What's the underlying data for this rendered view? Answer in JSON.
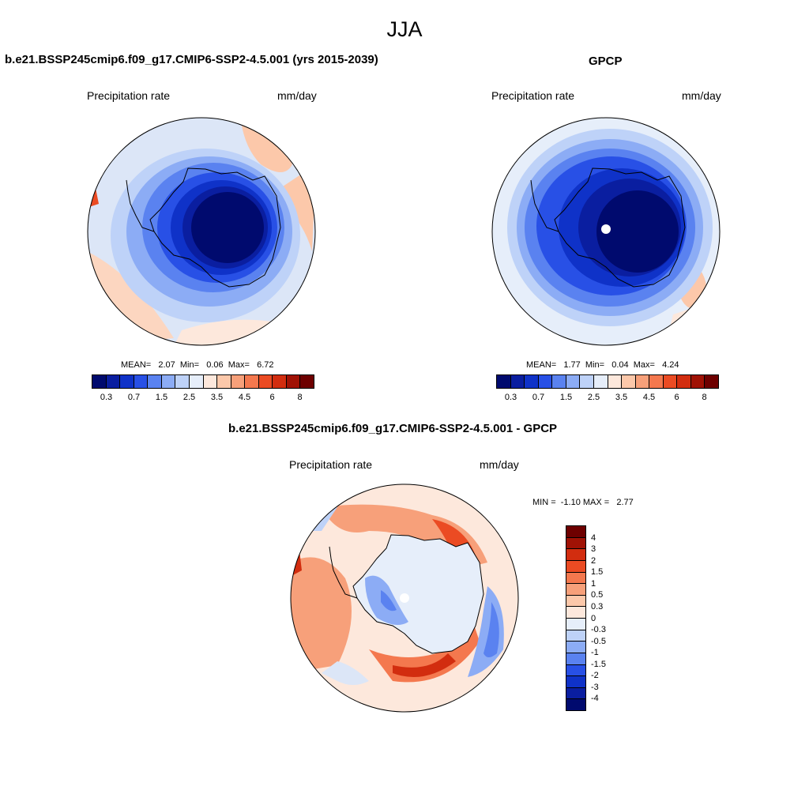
{
  "title": "JJA",
  "panels": {
    "model": {
      "title": "b.e21.BSSP245cmip6.f09_g17.CMIP6-SSP2-4.5.001 (yrs 2015-2039)",
      "variable": "Precipitation rate",
      "units": "mm/day",
      "stats": "MEAN=   2.07  Min=   0.06  Max=   6.72",
      "mean": 2.07,
      "min": 0.06,
      "max": 6.72
    },
    "obs": {
      "title": "GPCP",
      "variable": "Precipitation rate",
      "units": "mm/day",
      "stats": "MEAN=   1.77  Min=   0.04  Max=   4.24",
      "mean": 1.77,
      "min": 0.04,
      "max": 4.24
    },
    "diff": {
      "title": "b.e21.BSSP245cmip6.f09_g17.CMIP6-SSP2-4.5.001 - GPCP",
      "variable": "Precipitation rate",
      "units": "mm/day",
      "stats": "MIN =  -1.10 MAX =   2.77",
      "min": -1.1,
      "max": 2.77
    }
  },
  "colorbar_abs": {
    "labels": [
      "0.3",
      "0.7",
      "1.5",
      "2.5",
      "3.5",
      "4.5",
      "6",
      "8"
    ],
    "colors": [
      "#000a6e",
      "#0a1ea0",
      "#0f32c8",
      "#2850e6",
      "#5a82f0",
      "#8cacf5",
      "#bed2f8",
      "#e6eefa",
      "#fde8dc",
      "#fcc8aa",
      "#f7a07a",
      "#f4784e",
      "#eb4b23",
      "#d22d0f",
      "#a01205",
      "#6e0000"
    ]
  },
  "colorbar_diff": {
    "labels": [
      "4",
      "3",
      "2",
      "1.5",
      "1",
      "0.5",
      "0.3",
      "0",
      "-0.3",
      "-0.5",
      "-1",
      "-1.5",
      "-2",
      "-3",
      "-4"
    ],
    "colors": [
      "#6e0000",
      "#a01205",
      "#d22d0f",
      "#eb4b23",
      "#f4784e",
      "#f7a07a",
      "#fcc8aa",
      "#fde8dc",
      "#e6eefa",
      "#bed2f8",
      "#8cacf5",
      "#5a82f0",
      "#2850e6",
      "#0f32c8",
      "#0a1ea0",
      "#000a6e"
    ]
  }
}
